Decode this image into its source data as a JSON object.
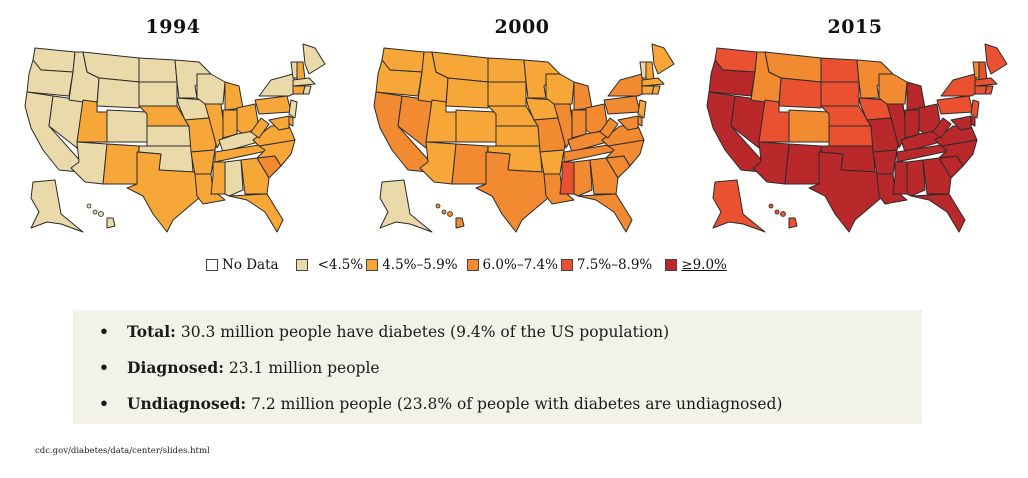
{
  "colors": {
    "no_data": "#ffffff",
    "lt_4_5": "#ead9a9",
    "4_5_to_5_9": "#f7a737",
    "6_0_to_7_4": "#f18a30",
    "7_5_to_8_9": "#ea5130",
    "ge_9_0": "#b9282a",
    "border": "#2b2b2b"
  },
  "legend": [
    {
      "key": "no_data",
      "label": "No Data"
    },
    {
      "key": "lt_4_5",
      "label": "<4.5%"
    },
    {
      "key": "4_5_to_5_9",
      "label": "4.5%–5.9%"
    },
    {
      "key": "6_0_to_7_4",
      "label": "6.0%–7.4%"
    },
    {
      "key": "7_5_to_8_9",
      "label": "7.5%–8.9%"
    },
    {
      "key": "ge_9_0",
      "label": "≥9.0%"
    }
  ],
  "chart_data": [
    {
      "type": "choropleth",
      "title": "1994",
      "categories": {
        "WA": "lt_4_5",
        "OR": "lt_4_5",
        "CA": "lt_4_5",
        "NV": "lt_4_5",
        "ID": "lt_4_5",
        "MT": "lt_4_5",
        "WY": "lt_4_5",
        "UT": "4_5_to_5_9",
        "CO": "lt_4_5",
        "AZ": "lt_4_5",
        "NM": "4_5_to_5_9",
        "ND": "lt_4_5",
        "SD": "lt_4_5",
        "NE": "4_5_to_5_9",
        "KS": "lt_4_5",
        "OK": "lt_4_5",
        "TX": "4_5_to_5_9",
        "MN": "lt_4_5",
        "IA": "lt_4_5",
        "MO": "4_5_to_5_9",
        "AR": "4_5_to_5_9",
        "LA": "4_5_to_5_9",
        "WI": "lt_4_5",
        "IL": "4_5_to_5_9",
        "MI": "4_5_to_5_9",
        "IN": "4_5_to_5_9",
        "OH": "4_5_to_5_9",
        "KY": "lt_4_5",
        "TN": "4_5_to_5_9",
        "MS": "4_5_to_5_9",
        "AL": "lt_4_5",
        "GA": "4_5_to_5_9",
        "FL": "4_5_to_5_9",
        "SC": "6_0_to_7_4",
        "NC": "4_5_to_5_9",
        "VA": "4_5_to_5_9",
        "WV": "4_5_to_5_9",
        "PA": "4_5_to_5_9",
        "NY": "lt_4_5",
        "NJ": "lt_4_5",
        "DE": "4_5_to_5_9",
        "MD": "4_5_to_5_9",
        "VT": "lt_4_5",
        "NH": "4_5_to_5_9",
        "ME": "lt_4_5",
        "MA": "lt_4_5",
        "CT": "4_5_to_5_9",
        "RI": "lt_4_5",
        "AK": "lt_4_5",
        "HI": "lt_4_5"
      }
    },
    {
      "type": "choropleth",
      "title": "2000",
      "categories": {
        "WA": "4_5_to_5_9",
        "OR": "4_5_to_5_9",
        "CA": "6_0_to_7_4",
        "NV": "6_0_to_7_4",
        "ID": "4_5_to_5_9",
        "MT": "4_5_to_5_9",
        "WY": "4_5_to_5_9",
        "UT": "4_5_to_5_9",
        "CO": "4_5_to_5_9",
        "AZ": "4_5_to_5_9",
        "NM": "6_0_to_7_4",
        "ND": "4_5_to_5_9",
        "SD": "4_5_to_5_9",
        "NE": "4_5_to_5_9",
        "KS": "4_5_to_5_9",
        "OK": "4_5_to_5_9",
        "TX": "6_0_to_7_4",
        "MN": "4_5_to_5_9",
        "IA": "4_5_to_5_9",
        "MO": "6_0_to_7_4",
        "AR": "4_5_to_5_9",
        "LA": "6_0_to_7_4",
        "WI": "4_5_to_5_9",
        "IL": "6_0_to_7_4",
        "MI": "6_0_to_7_4",
        "IN": "6_0_to_7_4",
        "OH": "6_0_to_7_4",
        "KY": "6_0_to_7_4",
        "TN": "6_0_to_7_4",
        "MS": "7_5_to_8_9",
        "AL": "6_0_to_7_4",
        "GA": "6_0_to_7_4",
        "FL": "6_0_to_7_4",
        "SC": "6_0_to_7_4",
        "NC": "6_0_to_7_4",
        "VA": "6_0_to_7_4",
        "WV": "6_0_to_7_4",
        "PA": "6_0_to_7_4",
        "NY": "6_0_to_7_4",
        "NJ": "4_5_to_5_9",
        "DE": "6_0_to_7_4",
        "MD": "6_0_to_7_4",
        "VT": "lt_4_5",
        "NH": "4_5_to_5_9",
        "ME": "4_5_to_5_9",
        "MA": "4_5_to_5_9",
        "CT": "4_5_to_5_9",
        "RI": "4_5_to_5_9",
        "AK": "lt_4_5",
        "HI": "6_0_to_7_4"
      }
    },
    {
      "type": "choropleth",
      "title": "2015",
      "categories": {
        "WA": "7_5_to_8_9",
        "OR": "ge_9_0",
        "CA": "ge_9_0",
        "NV": "ge_9_0",
        "ID": "6_0_to_7_4",
        "MT": "6_0_to_7_4",
        "WY": "7_5_to_8_9",
        "UT": "7_5_to_8_9",
        "CO": "6_0_to_7_4",
        "AZ": "ge_9_0",
        "NM": "ge_9_0",
        "ND": "7_5_to_8_9",
        "SD": "7_5_to_8_9",
        "NE": "7_5_to_8_9",
        "KS": "7_5_to_8_9",
        "OK": "ge_9_0",
        "TX": "ge_9_0",
        "MN": "6_0_to_7_4",
        "IA": "7_5_to_8_9",
        "MO": "ge_9_0",
        "AR": "ge_9_0",
        "LA": "ge_9_0",
        "WI": "6_0_to_7_4",
        "IL": "ge_9_0",
        "MI": "ge_9_0",
        "IN": "ge_9_0",
        "OH": "ge_9_0",
        "KY": "ge_9_0",
        "TN": "ge_9_0",
        "MS": "ge_9_0",
        "AL": "ge_9_0",
        "GA": "ge_9_0",
        "FL": "ge_9_0",
        "SC": "ge_9_0",
        "NC": "ge_9_0",
        "VA": "ge_9_0",
        "WV": "ge_9_0",
        "PA": "7_5_to_8_9",
        "NY": "7_5_to_8_9",
        "NJ": "7_5_to_8_9",
        "DE": "ge_9_0",
        "MD": "ge_9_0",
        "VT": "6_0_to_7_4",
        "NH": "7_5_to_8_9",
        "ME": "7_5_to_8_9",
        "MA": "7_5_to_8_9",
        "CT": "7_5_to_8_9",
        "RI": "7_5_to_8_9",
        "AK": "7_5_to_8_9",
        "HI": "7_5_to_8_9"
      }
    }
  ],
  "facts": [
    {
      "label": "Total:",
      "text": " 30.3 million people have diabetes (9.4% of the US population)"
    },
    {
      "label": "Diagnosed:",
      "text": " 23.1 million people"
    },
    {
      "label": "Undiagnosed:",
      "text": " 7.2 million people (23.8% of people with diabetes are undiagnosed)"
    }
  ],
  "bullet": "•",
  "citation": "cdc.gov/diabetes/data/center/slides.html"
}
